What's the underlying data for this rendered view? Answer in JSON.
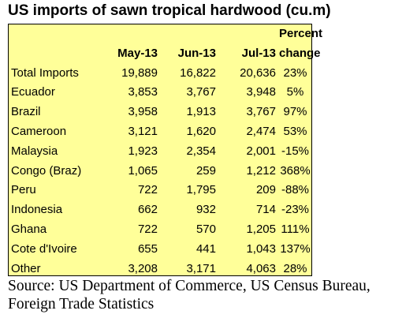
{
  "title": "US imports of sawn tropical hardwood (cu.m)",
  "source": "Source: US Department of Commerce, US Census Bureau, Foreign Trade Statistics",
  "chart_data": {
    "type": "table",
    "title": "US imports of sawn tropical hardwood (cu.m)",
    "columns": [
      "",
      "May-13",
      "Jun-13",
      "Jul-13",
      "Percent change"
    ],
    "header_top": [
      "",
      "",
      "",
      "",
      "Percent"
    ],
    "header_bottom": [
      "",
      "May-13",
      "Jun-13",
      "Jul-13",
      "change"
    ],
    "rows": [
      [
        "Total Imports",
        "19,889",
        "16,822",
        "20,636",
        "23%"
      ],
      [
        "Ecuador",
        "3,853",
        "3,767",
        "3,948",
        "5%"
      ],
      [
        "Brazil",
        "3,958",
        "1,913",
        "3,767",
        "97%"
      ],
      [
        "Cameroon",
        "3,121",
        "1,620",
        "2,474",
        "53%"
      ],
      [
        "Malaysia",
        "1,923",
        "2,354",
        "2,001",
        "-15%"
      ],
      [
        "Congo (Braz)",
        "1,065",
        "259",
        "1,212",
        "368%"
      ],
      [
        "Peru",
        "722",
        "1,795",
        "209",
        "-88%"
      ],
      [
        "Indonesia",
        "662",
        "932",
        "714",
        "-23%"
      ],
      [
        "Ghana",
        "722",
        "570",
        "1,205",
        "111%"
      ],
      [
        "Cote d'Ivoire",
        "655",
        "441",
        "1,043",
        "137%"
      ],
      [
        "Other",
        "3,208",
        "3,171",
        "4,063",
        "28%"
      ]
    ],
    "background_color": "#ffff99"
  }
}
